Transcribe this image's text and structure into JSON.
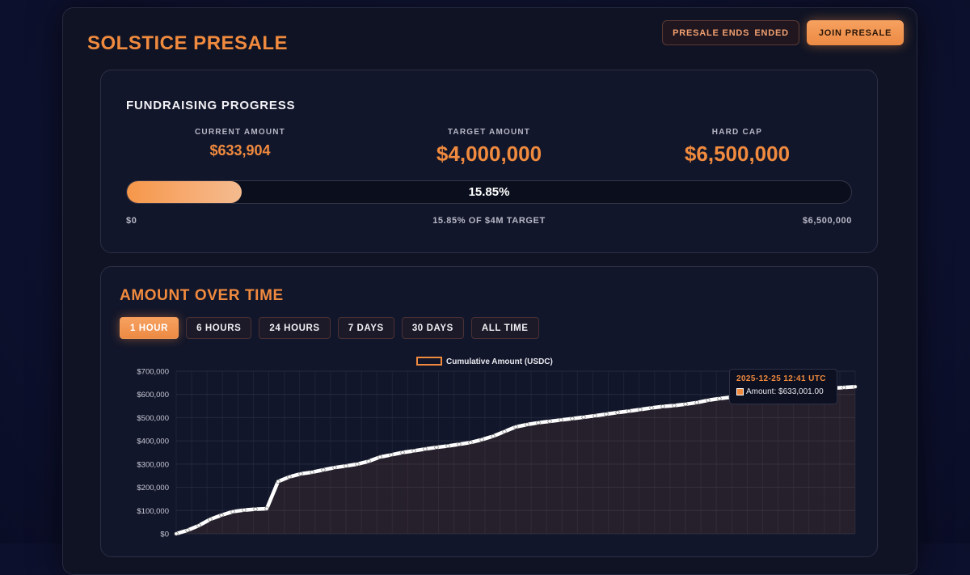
{
  "header": {
    "title": "SOLSTICE PRESALE",
    "presale_ends_label": "PRESALE ENDS",
    "presale_ends_value": "ENDED",
    "join_label": "JOIN PRESALE"
  },
  "progress": {
    "heading": "FUNDRAISING PROGRESS",
    "current_label": "CURRENT AMOUNT",
    "current_value": "$633,904",
    "target_label": "TARGET AMOUNT",
    "target_value": "$4,000,000",
    "hardcap_label": "HARD CAP",
    "hardcap_value": "$6,500,000",
    "percent_text": "15.85%",
    "percent_value": 15.85,
    "scale_min": "$0",
    "scale_mid": "15.85% OF $4M TARGET",
    "scale_max": "$6,500,000"
  },
  "chart_section": {
    "heading": "AMOUNT OVER TIME",
    "ranges": [
      {
        "label": "1 HOUR",
        "active": true
      },
      {
        "label": "6 HOURS",
        "active": false
      },
      {
        "label": "24 HOURS",
        "active": false
      },
      {
        "label": "7 DAYS",
        "active": false
      },
      {
        "label": "30 DAYS",
        "active": false
      },
      {
        "label": "ALL TIME",
        "active": false
      }
    ]
  },
  "tooltip": {
    "date": "2025-12-25 12:41 UTC",
    "amount_text": "Amount: $633,001.00"
  },
  "colors": {
    "accent": "#f08a3e",
    "line": "#ffffff"
  },
  "chart_data": {
    "type": "area",
    "legend": "Cumulative Amount (USDC)",
    "legend_position": "top-center",
    "ylim": [
      0,
      700000
    ],
    "yticks": [
      "$0",
      "$100,000",
      "$200,000",
      "$300,000",
      "$400,000",
      "$500,000",
      "$600,000",
      "$700,000"
    ],
    "grid": true,
    "series": [
      {
        "name": "Cumulative Amount (USDC)",
        "values": [
          0,
          15000,
          35000,
          62000,
          80000,
          95000,
          102000,
          106000,
          108000,
          225000,
          245000,
          258000,
          265000,
          275000,
          285000,
          292000,
          300000,
          312000,
          330000,
          340000,
          350000,
          357000,
          365000,
          372000,
          378000,
          385000,
          393000,
          405000,
          420000,
          440000,
          460000,
          470000,
          478000,
          484000,
          490000,
          496000,
          502000,
          508000,
          515000,
          522000,
          528000,
          535000,
          542000,
          548000,
          552000,
          558000,
          565000,
          575000,
          582000,
          588000,
          592000,
          597000,
          601000,
          606000,
          611000,
          616000,
          620000,
          624000,
          627000,
          630000,
          633001
        ]
      }
    ]
  }
}
